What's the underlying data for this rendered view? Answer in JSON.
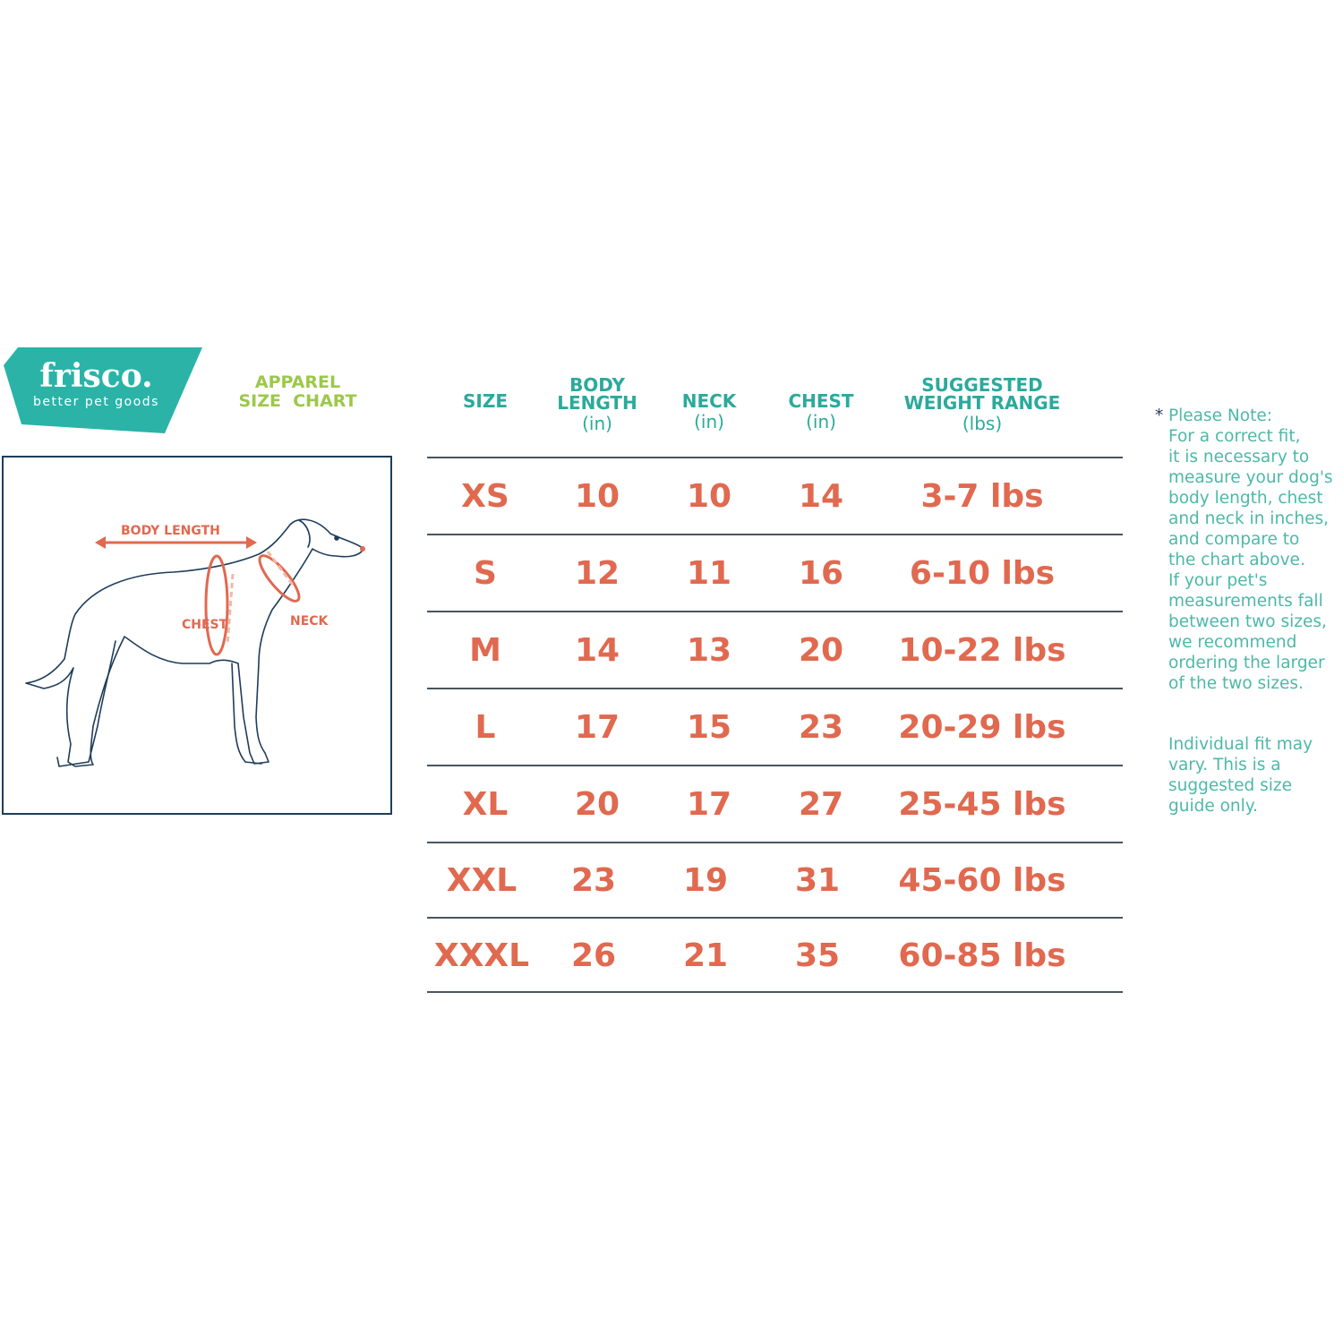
{
  "brand": {
    "name": "frisco.",
    "tagline": "better pet goods",
    "color": "#2bb3a8"
  },
  "title": {
    "line1": "APPAREL",
    "line2": "SIZE  CHART",
    "color": "#9cc84a"
  },
  "diagram": {
    "labels": {
      "body_length": "BODY LENGTH",
      "chest": "CHEST",
      "neck": "NECK"
    }
  },
  "table": {
    "headers": [
      {
        "title": "SIZE",
        "unit": ""
      },
      {
        "title": "BODY\nLENGTH",
        "unit": "(in)"
      },
      {
        "title": "NECK",
        "unit": "(in)"
      },
      {
        "title": "CHEST",
        "unit": "(in)"
      },
      {
        "title": "SUGGESTED\nWEIGHT RANGE",
        "unit": "(lbs)"
      }
    ],
    "rows": [
      [
        "XS",
        "10",
        "10",
        "14",
        "3-7 lbs"
      ],
      [
        "S",
        "12",
        "11",
        "16",
        "6-10 lbs"
      ],
      [
        "M",
        "14",
        "13",
        "20",
        "10-22 lbs"
      ],
      [
        "L",
        "17",
        "15",
        "23",
        "20-29 lbs"
      ],
      [
        "XL",
        "20",
        "17",
        "27",
        "25-45 lbs"
      ],
      [
        "XXL",
        "23",
        "19",
        "31",
        "45-60 lbs"
      ],
      [
        "XXXL",
        "26",
        "21",
        "35",
        "60-85 lbs"
      ]
    ],
    "header_color": "#2aaa9b",
    "value_color": "#e0694f"
  },
  "note": {
    "asterisk": "*",
    "text": "Please Note:\nFor a correct fit,\nit is necessary to\nmeasure your dog's\nbody length, chest\nand neck in inches,\nand compare to\nthe chart above.\nIf your pet's\nmeasurements fall\nbetween two sizes,\nwe recommend\nordering the larger\nof the two sizes.",
    "disclaimer": "Individual fit may\nvary. This is a\nsuggested size\nguide only."
  }
}
